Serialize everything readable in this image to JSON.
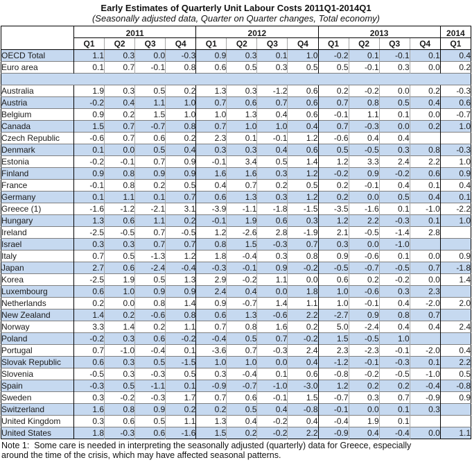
{
  "title": "Early Estimates of Quarterly Unit Labour Costs 2011Q1-2014Q1",
  "subtitle": "(Seasonally adjusted data, Quarter on Quarter changes, Total economy)",
  "colors": {
    "row_highlight": "#c6d9f0",
    "grid_light": "#a6a6a6",
    "grid_dark": "#000000"
  },
  "note": {
    "line1": "Note 1:  Some care is needed in interpreting the seasonally adjusted (quarterly) data for Greece, especially",
    "line2": "around the time of the crisis, which may have affected seasonal patterns."
  },
  "chart_data": {
    "type": "table",
    "title": "Early Estimates of Quarterly Unit Labour Costs 2011Q1-2014Q1",
    "year_groups": [
      {
        "label": "2011",
        "span": 4
      },
      {
        "label": "2012",
        "span": 4
      },
      {
        "label": "2013",
        "span": 4
      },
      {
        "label": "2014",
        "span": 1
      }
    ],
    "quarter_headers": [
      "Q1",
      "Q2",
      "Q3",
      "Q4",
      "Q1",
      "Q2",
      "Q3",
      "Q4",
      "Q1",
      "Q2",
      "Q3",
      "Q4",
      "Q1"
    ],
    "rows": [
      {
        "label": "OECD Total",
        "highlight": true,
        "values": [
          "1.1",
          "0.3",
          "0.0",
          "-0.3",
          "0.9",
          "0.3",
          "0.1",
          "1.0",
          "-0.2",
          "0.1",
          "-0.1",
          "0.1",
          "0.4"
        ]
      },
      {
        "label": "Euro area",
        "highlight": false,
        "values": [
          "0.1",
          "0.7",
          "-0.1",
          "0.8",
          "0.6",
          "0.5",
          "0.3",
          "0.5",
          "0.5",
          "-0.1",
          "0.3",
          "0.0",
          "0.2"
        ]
      },
      {
        "spacer": true
      },
      {
        "label": "Australia",
        "highlight": false,
        "values": [
          "1.9",
          "0.3",
          "0.5",
          "0.2",
          "1.3",
          "0.3",
          "-1.2",
          "0.6",
          "0.2",
          "-0.2",
          "0.0",
          "0.2",
          "-0.3"
        ]
      },
      {
        "label": "Austria",
        "highlight": true,
        "values": [
          "-0.2",
          "0.4",
          "1.1",
          "1.0",
          "0.7",
          "0.6",
          "0.7",
          "0.6",
          "0.7",
          "0.8",
          "0.5",
          "0.4",
          "0.6"
        ]
      },
      {
        "label": "Belgium",
        "highlight": false,
        "values": [
          "0.9",
          "0.2",
          "1.5",
          "1.0",
          "1.0",
          "1.3",
          "0.4",
          "0.6",
          "-0.1",
          "1.1",
          "0.1",
          "0.0",
          "-0.7"
        ]
      },
      {
        "label": "Canada",
        "highlight": true,
        "values": [
          "1.5",
          "0.7",
          "-0.7",
          "0.8",
          "0.7",
          "1.0",
          "1.0",
          "0.4",
          "0.7",
          "-0.3",
          "0.0",
          "0.2",
          "1.0"
        ]
      },
      {
        "label": "Czech Republic",
        "highlight": false,
        "values": [
          "-0.6",
          "0.7",
          "0.6",
          "0.2",
          "2.3",
          "0.1",
          "-0.1",
          "1.2",
          "-0.6",
          "0.4",
          "0.4",
          "",
          ""
        ]
      },
      {
        "label": "Denmark",
        "highlight": true,
        "values": [
          "0.1",
          "0.0",
          "0.5",
          "0.4",
          "0.3",
          "0.3",
          "0.4",
          "0.6",
          "0.5",
          "-0.5",
          "0.3",
          "0.8",
          "-0.3"
        ]
      },
      {
        "label": "Estonia",
        "highlight": false,
        "values": [
          "-0.2",
          "-0.1",
          "0.7",
          "0.9",
          "-0.1",
          "3.4",
          "0.5",
          "1.4",
          "1.2",
          "3.3",
          "2.4",
          "2.2",
          "1.0"
        ]
      },
      {
        "label": "Finland",
        "highlight": true,
        "values": [
          "0.9",
          "0.8",
          "0.9",
          "0.9",
          "1.6",
          "1.6",
          "0.3",
          "1.2",
          "-0.2",
          "0.9",
          "-0.2",
          "0.6",
          "0.9"
        ]
      },
      {
        "label": "France",
        "highlight": false,
        "values": [
          "-0.1",
          "0.8",
          "0.2",
          "0.5",
          "0.4",
          "0.7",
          "0.2",
          "0.5",
          "0.2",
          "-0.1",
          "0.4",
          "0.1",
          "0.4"
        ]
      },
      {
        "label": "Germany",
        "highlight": true,
        "values": [
          "0.1",
          "1.1",
          "0.1",
          "0.7",
          "0.6",
          "1.3",
          "0.3",
          "1.2",
          "0.2",
          "0.0",
          "0.5",
          "0.4",
          "0.1"
        ]
      },
      {
        "label": "Greece (1)",
        "highlight": false,
        "values": [
          "-1.6",
          "-1.2",
          "-2.1",
          "3.1",
          "-3.9",
          "-1.1",
          "-1.8",
          "-1.5",
          "-3.5",
          "-1.6",
          "0.1",
          "-1.0",
          "-2.2"
        ]
      },
      {
        "label": "Hungary",
        "highlight": true,
        "values": [
          "1.3",
          "0.6",
          "1.1",
          "0.2",
          "-0.1",
          "1.9",
          "0.6",
          "0.3",
          "1.2",
          "2.2",
          "-0.3",
          "0.1",
          "1.0"
        ]
      },
      {
        "label": "Ireland",
        "highlight": false,
        "values": [
          "-2.5",
          "-0.5",
          "0.7",
          "-0.5",
          "1.2",
          "-2.6",
          "2.8",
          "-1.9",
          "2.1",
          "-0.5",
          "-1.4",
          "2.8",
          ""
        ]
      },
      {
        "label": "Israel",
        "highlight": true,
        "values": [
          "0.3",
          "0.3",
          "0.7",
          "0.7",
          "0.8",
          "1.5",
          "-0.3",
          "0.7",
          "0.3",
          "0.0",
          "-1.0",
          "",
          ""
        ]
      },
      {
        "label": "Italy",
        "highlight": false,
        "values": [
          "0.7",
          "0.5",
          "-1.3",
          "1.2",
          "1.8",
          "-0.4",
          "0.3",
          "0.8",
          "0.9",
          "-0.6",
          "0.1",
          "0.0",
          "0.9"
        ]
      },
      {
        "label": "Japan",
        "highlight": true,
        "values": [
          "2.7",
          "0.6",
          "-2.4",
          "-0.4",
          "-0.3",
          "-0.1",
          "0.9",
          "-0.2",
          "-0.5",
          "-0.7",
          "-0.5",
          "0.7",
          "-1.8"
        ]
      },
      {
        "label": "Korea",
        "highlight": false,
        "values": [
          "-2.5",
          "1.9",
          "0.5",
          "1.3",
          "2.9",
          "-0.2",
          "1.1",
          "0.0",
          "0.6",
          "0.2",
          "-0.2",
          "0.0",
          "1.4"
        ]
      },
      {
        "label": "Luxembourg",
        "highlight": true,
        "values": [
          "0.6",
          "1.0",
          "0.9",
          "0.9",
          "2.4",
          "0.4",
          "0.0",
          "1.8",
          "1.0",
          "-0.6",
          "0.3",
          "2.3",
          ""
        ]
      },
      {
        "label": "Netherlands",
        "highlight": false,
        "values": [
          "0.2",
          "0.0",
          "0.8",
          "1.4",
          "0.9",
          "-0.7",
          "1.4",
          "1.1",
          "1.0",
          "-0.1",
          "0.4",
          "-2.0",
          "2.0"
        ]
      },
      {
        "label": "New Zealand",
        "highlight": true,
        "values": [
          "1.4",
          "0.2",
          "-0.6",
          "0.8",
          "0.6",
          "1.3",
          "-0.6",
          "2.2",
          "-2.7",
          "0.9",
          "0.8",
          "0.7",
          ""
        ]
      },
      {
        "label": "Norway",
        "highlight": false,
        "values": [
          "3.3",
          "1.4",
          "0.2",
          "1.1",
          "0.7",
          "0.8",
          "1.6",
          "0.2",
          "5.0",
          "-2.4",
          "0.4",
          "0.4",
          "2.4"
        ]
      },
      {
        "label": "Poland",
        "highlight": true,
        "values": [
          "-0.2",
          "0.3",
          "0.6",
          "-0.2",
          "-0.4",
          "0.5",
          "0.7",
          "-0.2",
          "1.5",
          "-0.5",
          "1.0",
          "",
          ""
        ]
      },
      {
        "label": "Portugal",
        "highlight": false,
        "values": [
          "0.7",
          "-1.0",
          "-0.4",
          "0.1",
          "-3.6",
          "0.7",
          "-0.3",
          "2.4",
          "2.3",
          "-2.3",
          "-0.1",
          "-2.0",
          "0.4"
        ]
      },
      {
        "label": "Slovak Republic",
        "highlight": true,
        "values": [
          "0.6",
          "0.3",
          "0.5",
          "-1.5",
          "1.0",
          "1.0",
          "0.0",
          "0.4",
          "-1.2",
          "-0.1",
          "-0.3",
          "0.1",
          "2.2"
        ]
      },
      {
        "label": "Slovenia",
        "highlight": false,
        "values": [
          "-0.5",
          "0.3",
          "-0.3",
          "0.5",
          "0.3",
          "-0.4",
          "0.1",
          "0.6",
          "-0.8",
          "-0.2",
          "-0.5",
          "-1.0",
          "0.5"
        ]
      },
      {
        "label": "Spain",
        "highlight": true,
        "values": [
          "-0.3",
          "0.5",
          "-1.1",
          "0.1",
          "-0.9",
          "-0.7",
          "-1.0",
          "-3.0",
          "1.2",
          "0.2",
          "0.2",
          "-0.4",
          "-0.8"
        ]
      },
      {
        "label": "Sweden",
        "highlight": false,
        "values": [
          "0.3",
          "-0.2",
          "-0.3",
          "1.7",
          "0.7",
          "0.6",
          "-0.1",
          "1.5",
          "-0.7",
          "0.3",
          "0.7",
          "-0.9",
          "0.9"
        ]
      },
      {
        "label": "Switzerland",
        "highlight": true,
        "values": [
          "1.6",
          "0.8",
          "0.9",
          "0.2",
          "0.2",
          "0.5",
          "0.4",
          "-0.8",
          "-0.1",
          "0.0",
          "0.1",
          "0.3",
          ""
        ]
      },
      {
        "label": "United Kingdom",
        "highlight": false,
        "values": [
          "0.3",
          "0.6",
          "0.5",
          "1.1",
          "1.3",
          "0.4",
          "-0.2",
          "0.4",
          "-0.4",
          "1.9",
          "0.1",
          "",
          ""
        ]
      },
      {
        "label": "United States",
        "highlight": true,
        "values": [
          "1.8",
          "-0.3",
          "0.6",
          "-1.6",
          "1.5",
          "0.2",
          "-0.2",
          "2.2",
          "-0.9",
          "0.4",
          "-0.4",
          "0.0",
          "1.1"
        ]
      }
    ]
  }
}
